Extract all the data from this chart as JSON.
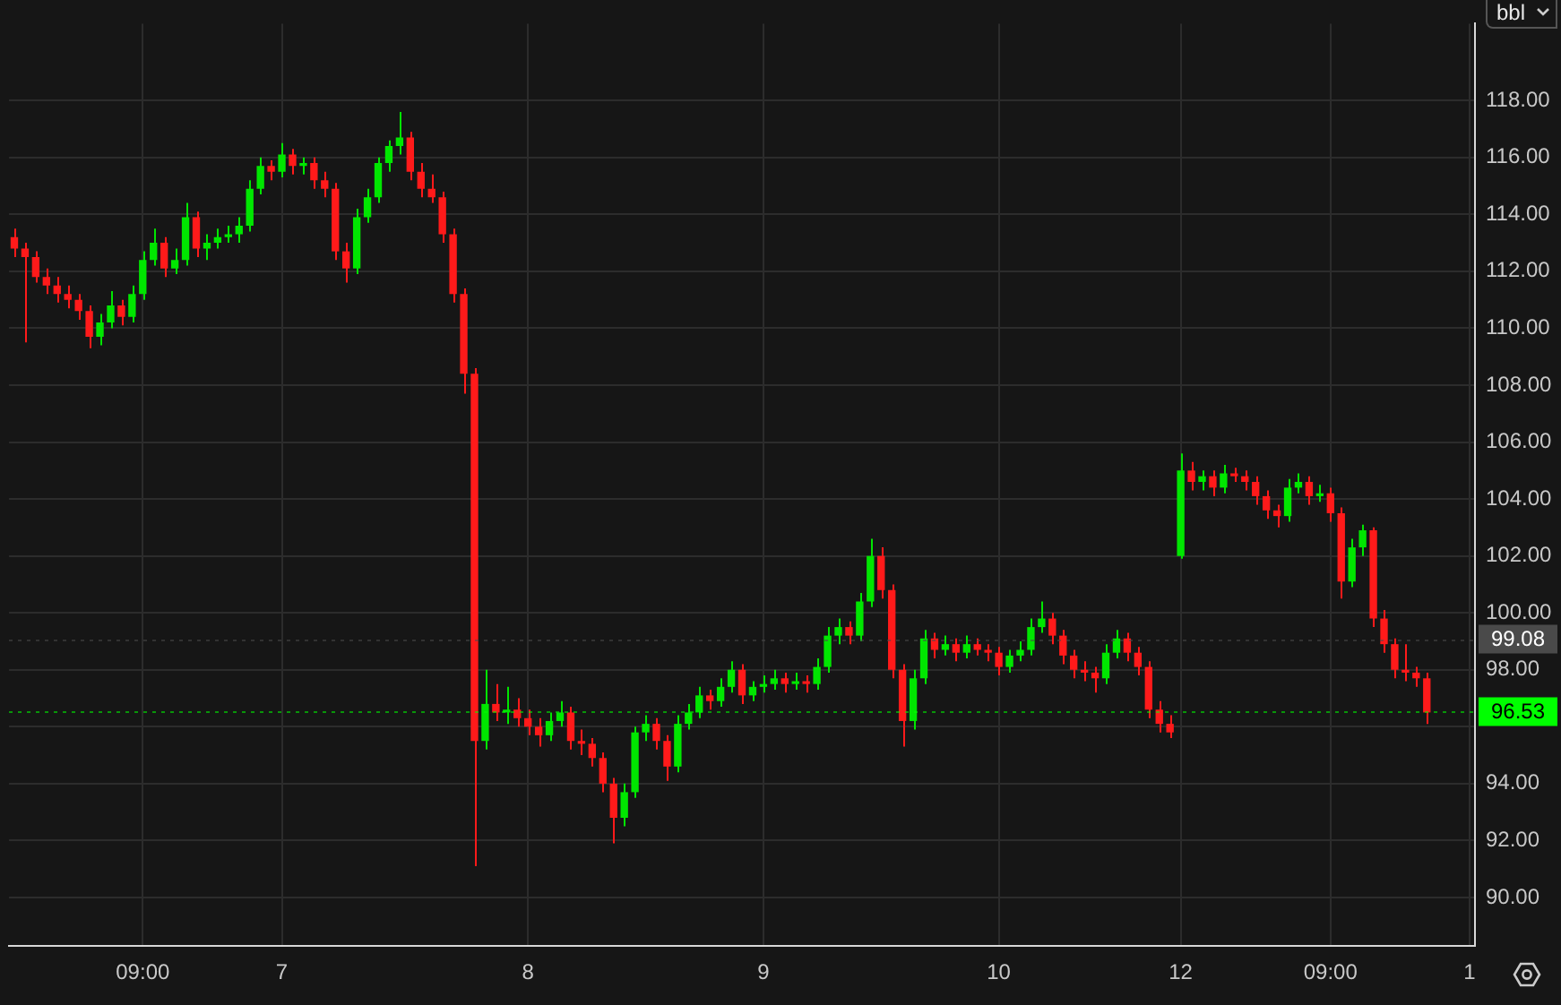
{
  "chart_data": {
    "type": "candlestick",
    "annotations": [
      "bbl"
    ],
    "categories": [
      null,
      null,
      null,
      null,
      null,
      null,
      null,
      null,
      null,
      null,
      null,
      null,
      "09:00",
      null,
      null,
      null,
      null,
      null,
      null,
      null,
      null,
      null,
      null,
      null,
      null,
      "7",
      null,
      null,
      null,
      null,
      null,
      null,
      null,
      null,
      null,
      null,
      null,
      null,
      null,
      null,
      null,
      null,
      null,
      null,
      null,
      null,
      null,
      null,
      "8",
      null,
      null,
      null,
      null,
      null,
      null,
      null,
      null,
      null,
      null,
      null,
      null,
      null,
      null,
      null,
      null,
      null,
      null,
      null,
      null,
      null,
      "9",
      null,
      null,
      null,
      null,
      null,
      null,
      null,
      null,
      null,
      null,
      null,
      null,
      null,
      null,
      null,
      null,
      null,
      null,
      null,
      null,
      null,
      "10",
      null,
      null,
      null,
      null,
      null,
      null,
      null,
      null,
      null,
      null,
      null,
      null,
      null,
      null,
      null,
      null,
      "12",
      null,
      null,
      null,
      null,
      null,
      null,
      null,
      null,
      null,
      null,
      null,
      null,
      null,
      "09:00",
      null,
      null,
      null,
      null,
      null,
      null,
      null,
      null,
      null,
      null,
      null,
      null,
      "1"
    ],
    "ohlc": [
      [
        113.2,
        113.5,
        112.5,
        112.8
      ],
      [
        112.8,
        113.0,
        109.5,
        112.5
      ],
      [
        112.5,
        112.7,
        111.6,
        111.8
      ],
      [
        111.8,
        112.1,
        111.2,
        111.5
      ],
      [
        111.5,
        111.8,
        110.9,
        111.2
      ],
      [
        111.2,
        111.5,
        110.7,
        111.0
      ],
      [
        111.0,
        111.2,
        110.3,
        110.6
      ],
      [
        110.6,
        110.8,
        109.3,
        109.7
      ],
      [
        109.7,
        110.5,
        109.4,
        110.2
      ],
      [
        110.2,
        111.3,
        110.0,
        110.8
      ],
      [
        110.8,
        111.0,
        110.1,
        110.4
      ],
      [
        110.4,
        111.5,
        110.2,
        111.2
      ],
      [
        111.2,
        112.7,
        111.0,
        112.4
      ],
      [
        112.4,
        113.5,
        112.2,
        113.0
      ],
      [
        113.0,
        113.2,
        111.8,
        112.1
      ],
      [
        112.1,
        112.8,
        111.9,
        112.4
      ],
      [
        112.4,
        114.4,
        112.2,
        113.9
      ],
      [
        113.9,
        114.1,
        112.5,
        112.8
      ],
      [
        112.8,
        113.3,
        112.4,
        113.0
      ],
      [
        113.0,
        113.5,
        112.8,
        113.2
      ],
      [
        113.2,
        113.6,
        113.0,
        113.3
      ],
      [
        113.3,
        113.9,
        113.0,
        113.6
      ],
      [
        113.6,
        115.2,
        113.4,
        114.9
      ],
      [
        114.9,
        116.0,
        114.7,
        115.7
      ],
      [
        115.7,
        115.9,
        115.2,
        115.5
      ],
      [
        115.5,
        116.5,
        115.3,
        116.1
      ],
      [
        116.1,
        116.3,
        115.4,
        115.7
      ],
      [
        115.7,
        116.0,
        115.4,
        115.8
      ],
      [
        115.8,
        116.0,
        114.9,
        115.2
      ],
      [
        115.2,
        115.5,
        114.6,
        114.9
      ],
      [
        114.9,
        115.1,
        112.4,
        112.7
      ],
      [
        112.7,
        113.0,
        111.6,
        112.1
      ],
      [
        112.1,
        114.2,
        111.9,
        113.9
      ],
      [
        113.9,
        114.9,
        113.7,
        114.6
      ],
      [
        114.6,
        116.0,
        114.4,
        115.8
      ],
      [
        115.8,
        116.6,
        115.5,
        116.4
      ],
      [
        116.4,
        117.6,
        116.1,
        116.7
      ],
      [
        116.7,
        116.9,
        115.2,
        115.5
      ],
      [
        115.5,
        115.8,
        114.6,
        114.9
      ],
      [
        114.9,
        115.4,
        114.4,
        114.6
      ],
      [
        114.6,
        114.8,
        113.0,
        113.3
      ],
      [
        113.3,
        113.5,
        110.9,
        111.2
      ],
      [
        111.2,
        111.4,
        107.7,
        108.4
      ],
      [
        108.4,
        108.6,
        91.1,
        95.5
      ],
      [
        95.5,
        98.0,
        95.2,
        96.8
      ],
      [
        96.8,
        97.5,
        96.2,
        96.5
      ],
      [
        96.5,
        97.4,
        96.1,
        96.6
      ],
      [
        96.6,
        97.0,
        96.0,
        96.3
      ],
      [
        96.3,
        96.6,
        95.7,
        96.0
      ],
      [
        96.0,
        96.3,
        95.3,
        95.7
      ],
      [
        95.7,
        96.5,
        95.5,
        96.2
      ],
      [
        96.2,
        96.9,
        96.0,
        96.5
      ],
      [
        96.5,
        96.7,
        95.2,
        95.5
      ],
      [
        95.5,
        95.9,
        95.0,
        95.4
      ],
      [
        95.4,
        95.6,
        94.6,
        94.9
      ],
      [
        94.9,
        95.1,
        93.7,
        94.0
      ],
      [
        94.0,
        94.2,
        91.9,
        92.8
      ],
      [
        92.8,
        94.0,
        92.5,
        93.7
      ],
      [
        93.7,
        96.0,
        93.5,
        95.8
      ],
      [
        95.8,
        96.4,
        95.5,
        96.1
      ],
      [
        96.1,
        96.3,
        95.2,
        95.5
      ],
      [
        95.5,
        95.7,
        94.1,
        94.6
      ],
      [
        94.6,
        96.4,
        94.4,
        96.1
      ],
      [
        96.1,
        96.8,
        95.9,
        96.5
      ],
      [
        96.5,
        97.4,
        96.3,
        97.1
      ],
      [
        97.1,
        97.3,
        96.6,
        96.9
      ],
      [
        96.9,
        97.7,
        96.7,
        97.4
      ],
      [
        97.4,
        98.3,
        97.2,
        98.0
      ],
      [
        98.0,
        98.2,
        96.8,
        97.1
      ],
      [
        97.1,
        97.6,
        96.9,
        97.4
      ],
      [
        97.4,
        97.8,
        97.2,
        97.5
      ],
      [
        97.5,
        98.0,
        97.3,
        97.7
      ],
      [
        97.7,
        97.9,
        97.2,
        97.5
      ],
      [
        97.5,
        97.9,
        97.3,
        97.6
      ],
      [
        97.6,
        97.8,
        97.2,
        97.5
      ],
      [
        97.5,
        98.4,
        97.3,
        98.1
      ],
      [
        98.1,
        99.5,
        97.9,
        99.2
      ],
      [
        99.2,
        99.8,
        98.9,
        99.5
      ],
      [
        99.5,
        99.7,
        98.9,
        99.2
      ],
      [
        99.2,
        100.7,
        99.0,
        100.4
      ],
      [
        100.4,
        102.6,
        100.2,
        102.0
      ],
      [
        102.0,
        102.3,
        100.5,
        100.8
      ],
      [
        100.8,
        101.0,
        97.7,
        98.0
      ],
      [
        98.0,
        98.2,
        95.3,
        96.2
      ],
      [
        96.2,
        98.0,
        95.9,
        97.7
      ],
      [
        97.7,
        99.4,
        97.5,
        99.1
      ],
      [
        99.1,
        99.3,
        98.4,
        98.7
      ],
      [
        98.7,
        99.2,
        98.5,
        98.9
      ],
      [
        98.9,
        99.1,
        98.3,
        98.6
      ],
      [
        98.6,
        99.2,
        98.4,
        98.9
      ],
      [
        98.9,
        99.1,
        98.5,
        98.7
      ],
      [
        98.7,
        98.9,
        98.3,
        98.6
      ],
      [
        98.6,
        98.8,
        97.8,
        98.1
      ],
      [
        98.1,
        98.7,
        97.9,
        98.5
      ],
      [
        98.5,
        99.0,
        98.3,
        98.7
      ],
      [
        98.7,
        99.8,
        98.5,
        99.5
      ],
      [
        99.5,
        100.4,
        99.3,
        99.8
      ],
      [
        99.8,
        100.0,
        98.9,
        99.2
      ],
      [
        99.2,
        99.4,
        98.2,
        98.5
      ],
      [
        98.5,
        98.7,
        97.7,
        98.0
      ],
      [
        98.0,
        98.3,
        97.6,
        97.9
      ],
      [
        97.9,
        98.1,
        97.2,
        97.7
      ],
      [
        97.7,
        98.9,
        97.5,
        98.6
      ],
      [
        98.6,
        99.4,
        98.4,
        99.1
      ],
      [
        99.1,
        99.3,
        98.3,
        98.6
      ],
      [
        98.6,
        98.8,
        97.8,
        98.1
      ],
      [
        98.1,
        98.3,
        96.3,
        96.6
      ],
      [
        96.6,
        96.9,
        95.8,
        96.1
      ],
      [
        96.1,
        96.4,
        95.6,
        95.8
      ],
      [
        102.0,
        105.6,
        101.9,
        105.0
      ],
      [
        105.0,
        105.3,
        104.3,
        104.6
      ],
      [
        104.6,
        105.0,
        104.3,
        104.8
      ],
      [
        104.8,
        105.0,
        104.1,
        104.4
      ],
      [
        104.4,
        105.2,
        104.2,
        104.9
      ],
      [
        104.9,
        105.1,
        104.6,
        104.8
      ],
      [
        104.8,
        105.0,
        104.3,
        104.6
      ],
      [
        104.6,
        104.8,
        103.8,
        104.1
      ],
      [
        104.1,
        104.3,
        103.3,
        103.6
      ],
      [
        103.6,
        103.8,
        103.0,
        103.4
      ],
      [
        103.4,
        104.7,
        103.2,
        104.4
      ],
      [
        104.4,
        104.9,
        104.2,
        104.6
      ],
      [
        104.6,
        104.8,
        103.8,
        104.1
      ],
      [
        104.1,
        104.5,
        103.9,
        104.2
      ],
      [
        104.2,
        104.4,
        103.2,
        103.5
      ],
      [
        103.5,
        103.7,
        100.5,
        101.1
      ],
      [
        101.1,
        102.6,
        100.9,
        102.3
      ],
      [
        102.3,
        103.1,
        102.0,
        102.9
      ],
      [
        102.9,
        103.0,
        99.5,
        99.8
      ],
      [
        99.8,
        100.1,
        98.6,
        98.9
      ],
      [
        98.9,
        99.1,
        97.7,
        98.0
      ],
      [
        98.0,
        98.9,
        97.6,
        97.9
      ],
      [
        97.9,
        98.1,
        97.4,
        97.7
      ],
      [
        97.7,
        97.9,
        96.1,
        96.5
      ],
      null,
      null,
      null,
      null
    ],
    "ylim": [
      88.3,
      120.7
    ],
    "yticks": [
      {
        "value": 90,
        "label": "90.00"
      },
      {
        "value": 92,
        "label": "92.00"
      },
      {
        "value": 94,
        "label": "94.00"
      },
      {
        "value": 96,
        "label": null
      },
      {
        "value": 98,
        "label": "98.00"
      },
      {
        "value": 100,
        "label": "100.00"
      },
      {
        "value": 102,
        "label": "102.00"
      },
      {
        "value": 104,
        "label": "104.00"
      },
      {
        "value": 106,
        "label": "106.00"
      },
      {
        "value": 108,
        "label": "108.00"
      },
      {
        "value": 110,
        "label": "110.00"
      },
      {
        "value": 112,
        "label": "112.00"
      },
      {
        "value": 114,
        "label": "114.00"
      },
      {
        "value": 116,
        "label": "116.00"
      },
      {
        "value": 118,
        "label": "118.00"
      }
    ],
    "ref_lines": [
      {
        "axis": "y",
        "value": 99.08,
        "label": "99.08",
        "color": "#4a4a4a"
      },
      {
        "axis": "y",
        "value": 96.53,
        "label": "96.53",
        "color": "#00ff00"
      }
    ],
    "grid": true,
    "legend": false
  }
}
